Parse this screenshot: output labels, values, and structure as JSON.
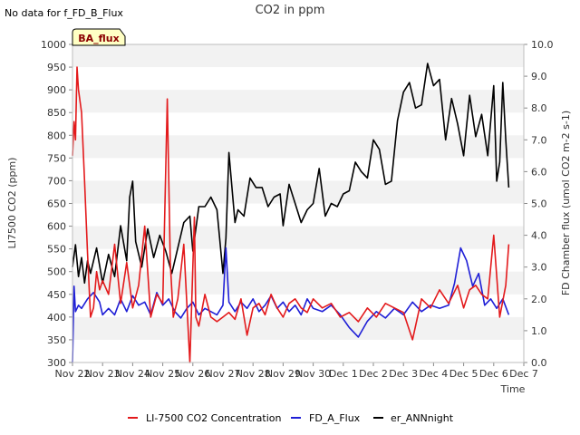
{
  "chart_data": {
    "type": "line",
    "title": "CO2 in ppm",
    "note": "No data for f_FD_B_Flux",
    "badge": "BA_flux",
    "xlabel": "Time",
    "ylabel": "LI7500 CO2 (ppm)",
    "y2label": "FD Chamber flux (umol CO2 m-2 s-1)",
    "xlim": [
      0,
      15
    ],
    "ylim": [
      300,
      1000
    ],
    "y2lim": [
      0,
      10
    ],
    "x_ticks": [
      "Nov 22",
      "Nov 23",
      "Nov 24",
      "Nov 25",
      "Nov 26",
      "Nov 27",
      "Nov 28",
      "Nov 29",
      "Nov 30",
      "Dec 1",
      "Dec 2",
      "Dec 3",
      "Dec 4",
      "Dec 5",
      "Dec 6",
      "Dec 7"
    ],
    "y_ticks": [
      300,
      350,
      400,
      450,
      500,
      550,
      600,
      650,
      700,
      750,
      800,
      850,
      900,
      950,
      1000
    ],
    "y2_ticks": [
      "0.0",
      "1.0",
      "2.0",
      "3.0",
      "4.0",
      "5.0",
      "6.0",
      "7.0",
      "8.0",
      "9.0",
      "10.0"
    ],
    "colors": {
      "co2": "#e31a1c",
      "fd_a": "#1f1fd6",
      "er": "#000000",
      "band": "#f2f2f2",
      "badge_bg": "#ffffc4",
      "badge_text": "#8b0000"
    },
    "series": [
      {
        "name": "LI-7500 CO2 Concentration",
        "axis": "left",
        "color": "#e31a1c",
        "x": [
          0.0,
          0.05,
          0.1,
          0.15,
          0.2,
          0.3,
          0.4,
          0.5,
          0.6,
          0.7,
          0.8,
          0.9,
          1.0,
          1.2,
          1.4,
          1.6,
          1.8,
          2.0,
          2.2,
          2.4,
          2.6,
          2.8,
          3.0,
          3.15,
          3.25,
          3.35,
          3.5,
          3.7,
          3.9,
          4.05,
          4.1,
          4.2,
          4.4,
          4.6,
          4.8,
          5.0,
          5.2,
          5.4,
          5.6,
          5.8,
          6.0,
          6.2,
          6.4,
          6.6,
          6.8,
          7.0,
          7.2,
          7.4,
          7.6,
          7.8,
          8.0,
          8.3,
          8.6,
          8.9,
          9.2,
          9.5,
          9.8,
          10.1,
          10.4,
          10.7,
          11.0,
          11.3,
          11.6,
          11.9,
          12.2,
          12.5,
          12.8,
          13.0,
          13.2,
          13.4,
          13.6,
          13.8,
          13.9,
          14.0,
          14.2,
          14.4,
          14.5
        ],
        "values": [
          755,
          830,
          790,
          950,
          900,
          850,
          700,
          540,
          400,
          420,
          500,
          460,
          480,
          450,
          560,
          430,
          520,
          420,
          470,
          600,
          400,
          450,
          430,
          880,
          520,
          400,
          440,
          560,
          300,
          620,
          400,
          380,
          450,
          400,
          390,
          400,
          410,
          395,
          440,
          360,
          420,
          430,
          405,
          450,
          420,
          400,
          430,
          440,
          420,
          410,
          440,
          420,
          430,
          400,
          410,
          390,
          420,
          400,
          430,
          420,
          410,
          350,
          440,
          420,
          460,
          430,
          470,
          420,
          460,
          470,
          450,
          440,
          510,
          580,
          400,
          470,
          560
        ]
      },
      {
        "name": "FD_A_Flux",
        "axis": "right",
        "color": "#1f1fd6",
        "x": [
          0.0,
          0.05,
          0.1,
          0.2,
          0.3,
          0.5,
          0.7,
          0.9,
          1.0,
          1.2,
          1.4,
          1.6,
          1.8,
          2.0,
          2.2,
          2.4,
          2.6,
          2.8,
          3.0,
          3.2,
          3.4,
          3.6,
          3.8,
          4.0,
          4.2,
          4.4,
          4.6,
          4.8,
          5.0,
          5.1,
          5.2,
          5.4,
          5.6,
          5.8,
          6.0,
          6.2,
          6.4,
          6.6,
          6.8,
          7.0,
          7.2,
          7.4,
          7.6,
          7.8,
          8.0,
          8.3,
          8.6,
          8.9,
          9.2,
          9.5,
          9.8,
          10.1,
          10.4,
          10.7,
          11.0,
          11.3,
          11.6,
          11.9,
          12.2,
          12.5,
          12.7,
          12.9,
          13.1,
          13.3,
          13.5,
          13.7,
          13.9,
          14.1,
          14.3,
          14.5
        ],
        "values": [
          0.0,
          2.4,
          1.6,
          1.8,
          1.7,
          2.0,
          2.2,
          1.9,
          1.5,
          1.7,
          1.5,
          2.0,
          1.6,
          2.1,
          1.8,
          1.9,
          1.5,
          2.2,
          1.8,
          2.0,
          1.6,
          1.4,
          1.7,
          1.9,
          1.5,
          1.7,
          1.6,
          1.5,
          1.8,
          3.6,
          1.9,
          1.6,
          1.9,
          1.7,
          2.0,
          1.6,
          1.8,
          2.1,
          1.7,
          1.9,
          1.6,
          1.8,
          1.5,
          2.0,
          1.7,
          1.6,
          1.8,
          1.5,
          1.1,
          0.8,
          1.3,
          1.6,
          1.4,
          1.7,
          1.5,
          1.9,
          1.6,
          1.8,
          1.7,
          1.8,
          2.5,
          3.6,
          3.2,
          2.4,
          2.8,
          1.8,
          2.0,
          1.7,
          2.0,
          1.5
        ]
      },
      {
        "name": "er_ANNnight",
        "axis": "right",
        "color": "#000000",
        "x": [
          0.0,
          0.1,
          0.2,
          0.3,
          0.4,
          0.5,
          0.6,
          0.8,
          1.0,
          1.2,
          1.4,
          1.6,
          1.8,
          1.9,
          2.0,
          2.1,
          2.3,
          2.5,
          2.7,
          2.9,
          3.1,
          3.3,
          3.5,
          3.7,
          3.9,
          4.0,
          4.2,
          4.4,
          4.6,
          4.8,
          5.0,
          5.1,
          5.2,
          5.4,
          5.5,
          5.7,
          5.9,
          6.1,
          6.3,
          6.5,
          6.7,
          6.9,
          7.0,
          7.2,
          7.4,
          7.6,
          7.8,
          8.0,
          8.2,
          8.4,
          8.6,
          8.8,
          9.0,
          9.2,
          9.4,
          9.6,
          9.8,
          10.0,
          10.2,
          10.4,
          10.6,
          10.8,
          11.0,
          11.2,
          11.4,
          11.6,
          11.8,
          12.0,
          12.2,
          12.4,
          12.6,
          12.8,
          13.0,
          13.2,
          13.4,
          13.6,
          13.8,
          14.0,
          14.1,
          14.2,
          14.3,
          14.4,
          14.5
        ],
        "values": [
          3.0,
          3.7,
          2.7,
          3.3,
          2.5,
          3.2,
          2.8,
          3.6,
          2.5,
          3.4,
          2.7,
          4.3,
          3.2,
          5.2,
          5.7,
          3.8,
          3.0,
          4.2,
          3.3,
          4.0,
          3.5,
          2.8,
          3.6,
          4.4,
          4.6,
          3.5,
          4.9,
          4.9,
          5.2,
          4.8,
          2.8,
          3.9,
          6.6,
          4.4,
          4.8,
          4.6,
          5.8,
          5.5,
          5.5,
          4.9,
          5.2,
          5.3,
          4.3,
          5.6,
          5.0,
          4.4,
          4.8,
          5.0,
          6.1,
          4.6,
          5.0,
          4.9,
          5.3,
          5.4,
          6.3,
          6.0,
          5.8,
          7.0,
          6.7,
          5.6,
          5.7,
          7.6,
          8.5,
          8.8,
          8.0,
          8.1,
          9.4,
          8.7,
          8.9,
          7.0,
          8.3,
          7.5,
          6.5,
          8.4,
          7.1,
          7.8,
          6.5,
          8.7,
          5.7,
          6.3,
          8.8,
          7.0,
          5.5
        ]
      }
    ]
  }
}
